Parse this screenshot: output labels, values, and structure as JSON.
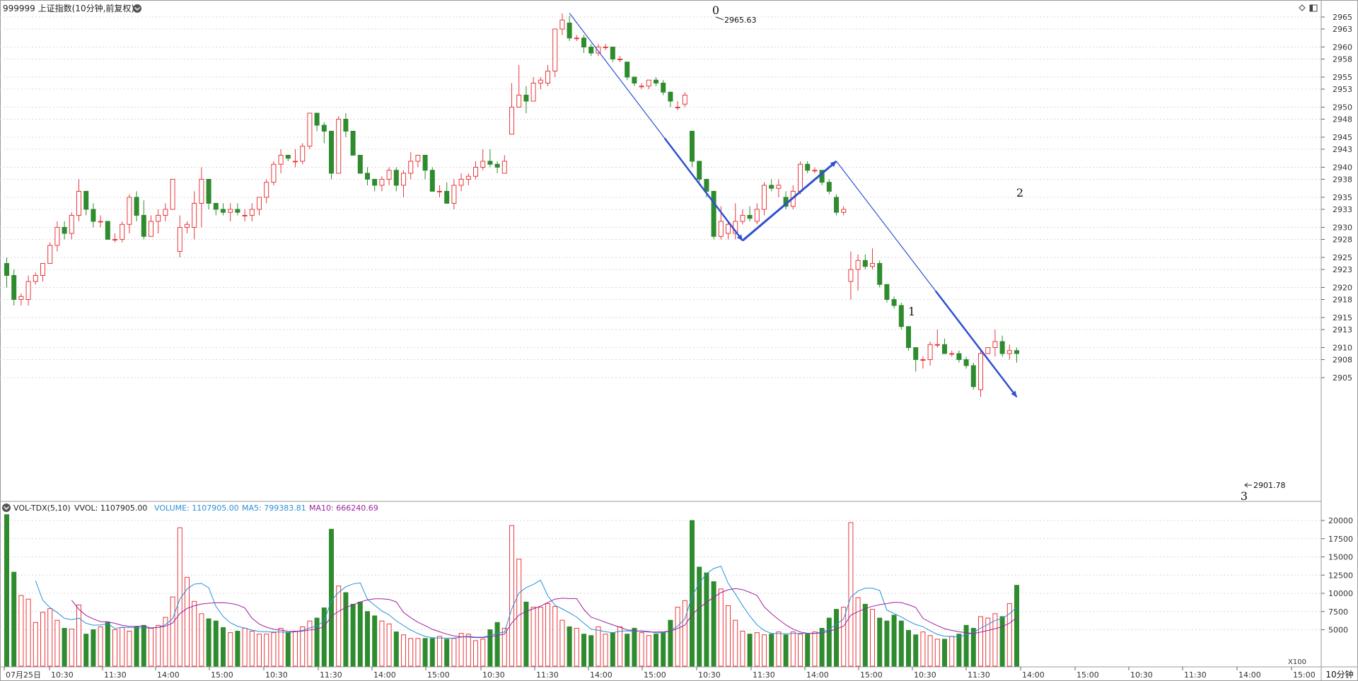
{
  "header": {
    "title": "999999 上证指数(10分钟,前复权)",
    "right_icons": [
      "diamond-icon",
      "layout-icon"
    ]
  },
  "volume_header": {
    "name": "VOL-TDX(5,10)",
    "vvol": "VVOL: 1107905.00",
    "volume": "VOLUME: 1107905.00",
    "ma5": "MA5: 799383.81",
    "ma10": "MA10: 666240.69"
  },
  "axis": {
    "price_ticks": [
      "2965",
      "2963",
      "2960",
      "2958",
      "2955",
      "2953",
      "2950",
      "2948",
      "2945",
      "2943",
      "2940",
      "2938",
      "2935",
      "2933",
      "2930",
      "2928",
      "2925",
      "2923",
      "2920",
      "2918",
      "2915",
      "2913",
      "2910",
      "2908",
      "2905"
    ],
    "volume_ticks": [
      "20000",
      "17500",
      "15000",
      "12500",
      "10000",
      "7500",
      "5000"
    ],
    "volume_unit": "X100",
    "period_label": "10分钟",
    "time_labels": [
      "07月25日",
      "10:30",
      "11:30",
      "14:00",
      "15:00",
      "10:30",
      "11:30",
      "14:00",
      "15:00",
      "10:30",
      "11:30",
      "14:00",
      "15:00",
      "10:30",
      "11:30",
      "14:00",
      "15:00",
      "10:30",
      "11:30",
      "14:00",
      "15:00",
      "10:30",
      "11:30",
      "14:00",
      "15:00"
    ]
  },
  "annotations": {
    "pivot_labels": [
      "0",
      "1",
      "2",
      "3"
    ],
    "high_label": "2965.63",
    "low_label": "2901.78"
  },
  "colors": {
    "up": "#e8383d",
    "down": "#2e8b2e",
    "pivot_line": "#3050d0",
    "ma5": "#2a90d8",
    "ma10": "#a020a0",
    "grid": "#d8d8d8",
    "axis_text": "#333333"
  },
  "chart_data": {
    "type": "candlestick",
    "title": "999999 上证指数(10分钟,前复权)",
    "price_range": [
      2901.78,
      2965.63
    ],
    "volume_range": [
      0,
      20000
    ],
    "volume_unit": "X100",
    "candles": [
      {
        "o": 2924,
        "h": 2925,
        "l": 2920,
        "c": 2922,
        "v": 20800
      },
      {
        "o": 2922,
        "h": 2923,
        "l": 2917,
        "c": 2918,
        "v": 12900
      },
      {
        "o": 2918,
        "h": 2919,
        "l": 2917,
        "c": 2918.5,
        "v": 9700
      },
      {
        "o": 2918,
        "h": 2922,
        "l": 2917,
        "c": 2921,
        "v": 9200
      },
      {
        "o": 2921,
        "h": 2922.5,
        "l": 2920.5,
        "c": 2922,
        "v": 6000
      },
      {
        "o": 2922,
        "h": 2924,
        "l": 2921,
        "c": 2924,
        "v": 7400
      },
      {
        "o": 2924,
        "h": 2927.5,
        "l": 2924,
        "c": 2927,
        "v": 7900
      },
      {
        "o": 2927,
        "h": 2931,
        "l": 2926,
        "c": 2930,
        "v": 6300
      },
      {
        "o": 2930,
        "h": 2931,
        "l": 2928,
        "c": 2929,
        "v": 5200
      },
      {
        "o": 2929,
        "h": 2932.5,
        "l": 2928,
        "c": 2932,
        "v": 5100
      },
      {
        "o": 2932,
        "h": 2938,
        "l": 2931,
        "c": 2936,
        "v": 8400
      },
      {
        "o": 2936,
        "h": 2936,
        "l": 2932,
        "c": 2933,
        "v": 4400
      },
      {
        "o": 2933,
        "h": 2934,
        "l": 2930,
        "c": 2931,
        "v": 5000
      },
      {
        "o": 2931,
        "h": 2932,
        "l": 2930,
        "c": 2931,
        "v": 5400
      },
      {
        "o": 2931,
        "h": 2931,
        "l": 2928,
        "c": 2928,
        "v": 6000
      },
      {
        "o": 2928,
        "h": 2929,
        "l": 2927.5,
        "c": 2928,
        "v": 5000
      },
      {
        "o": 2928,
        "h": 2931,
        "l": 2927.5,
        "c": 2930.5,
        "v": 5300
      },
      {
        "o": 2930.5,
        "h": 2935.5,
        "l": 2929,
        "c": 2935,
        "v": 4800
      },
      {
        "o": 2935,
        "h": 2936,
        "l": 2931,
        "c": 2932,
        "v": 5400
      },
      {
        "o": 2932,
        "h": 2934.5,
        "l": 2928,
        "c": 2928.5,
        "v": 5600
      },
      {
        "o": 2928.5,
        "h": 2932,
        "l": 2928.5,
        "c": 2931,
        "v": 5200
      },
      {
        "o": 2931,
        "h": 2933,
        "l": 2929,
        "c": 2932,
        "v": 5600
      },
      {
        "o": 2932,
        "h": 2934,
        "l": 2931,
        "c": 2933,
        "v": 6700
      },
      {
        "o": 2933,
        "h": 2938,
        "l": 2933,
        "c": 2938,
        "v": 9500
      },
      {
        "o": 2926,
        "h": 2932,
        "l": 2925,
        "c": 2930,
        "v": 19000
      },
      {
        "o": 2930,
        "h": 2931,
        "l": 2929,
        "c": 2930.5,
        "v": 12200
      },
      {
        "o": 2930,
        "h": 2936,
        "l": 2928,
        "c": 2934,
        "v": 8900
      },
      {
        "o": 2934,
        "h": 2940,
        "l": 2930,
        "c": 2938,
        "v": 7200
      },
      {
        "o": 2938,
        "h": 2938,
        "l": 2933,
        "c": 2934,
        "v": 6500
      },
      {
        "o": 2934,
        "h": 2934,
        "l": 2932,
        "c": 2933,
        "v": 6200
      },
      {
        "o": 2933,
        "h": 2934,
        "l": 2932,
        "c": 2932.5,
        "v": 5300
      },
      {
        "o": 2932.5,
        "h": 2934,
        "l": 2931,
        "c": 2933,
        "v": 4600
      },
      {
        "o": 2933,
        "h": 2934,
        "l": 2932,
        "c": 2932.5,
        "v": 4800
      },
      {
        "o": 2932,
        "h": 2933,
        "l": 2931,
        "c": 2932,
        "v": 5200
      },
      {
        "o": 2932,
        "h": 2934,
        "l": 2931,
        "c": 2933,
        "v": 4800
      },
      {
        "o": 2933,
        "h": 2935,
        "l": 2932,
        "c": 2935,
        "v": 4400
      },
      {
        "o": 2935,
        "h": 2938,
        "l": 2934,
        "c": 2937.5,
        "v": 4400
      },
      {
        "o": 2937.5,
        "h": 2941,
        "l": 2937,
        "c": 2940.5,
        "v": 4600
      },
      {
        "o": 2940.5,
        "h": 2943,
        "l": 2939,
        "c": 2942,
        "v": 5200
      },
      {
        "o": 2942,
        "h": 2942,
        "l": 2941,
        "c": 2941.5,
        "v": 4600
      },
      {
        "o": 2941,
        "h": 2943,
        "l": 2940,
        "c": 2941,
        "v": 4800
      },
      {
        "o": 2941,
        "h": 2944,
        "l": 2940.5,
        "c": 2943.5,
        "v": 5400
      },
      {
        "o": 2943.5,
        "h": 2949,
        "l": 2943,
        "c": 2949,
        "v": 6200
      },
      {
        "o": 2949,
        "h": 2949,
        "l": 2946,
        "c": 2947,
        "v": 6600
      },
      {
        "o": 2947,
        "h": 2947.5,
        "l": 2944,
        "c": 2946,
        "v": 8000
      },
      {
        "o": 2946,
        "h": 2946,
        "l": 2938,
        "c": 2939,
        "v": 18800
      },
      {
        "o": 2939,
        "h": 2948.5,
        "l": 2939,
        "c": 2948,
        "v": 11000
      },
      {
        "o": 2948,
        "h": 2949,
        "l": 2945,
        "c": 2946,
        "v": 10100
      },
      {
        "o": 2946,
        "h": 2946,
        "l": 2942,
        "c": 2942,
        "v": 8500
      },
      {
        "o": 2942,
        "h": 2942,
        "l": 2939,
        "c": 2939,
        "v": 8800
      },
      {
        "o": 2939,
        "h": 2940,
        "l": 2937,
        "c": 2938,
        "v": 7500
      },
      {
        "o": 2938,
        "h": 2938,
        "l": 2936,
        "c": 2937,
        "v": 6900
      },
      {
        "o": 2937,
        "h": 2938.5,
        "l": 2936,
        "c": 2938,
        "v": 6200
      },
      {
        "o": 2938,
        "h": 2940,
        "l": 2937,
        "c": 2939.5,
        "v": 5800
      },
      {
        "o": 2939.5,
        "h": 2940,
        "l": 2936,
        "c": 2937,
        "v": 4700
      },
      {
        "o": 2937,
        "h": 2939.5,
        "l": 2935,
        "c": 2939,
        "v": 4300
      },
      {
        "o": 2939,
        "h": 2942.5,
        "l": 2938,
        "c": 2941,
        "v": 3800
      },
      {
        "o": 2941,
        "h": 2942,
        "l": 2940,
        "c": 2942,
        "v": 3800
      },
      {
        "o": 2942,
        "h": 2942,
        "l": 2938,
        "c": 2939.5,
        "v": 3800
      },
      {
        "o": 2939.5,
        "h": 2940,
        "l": 2936,
        "c": 2936,
        "v": 3800
      },
      {
        "o": 2936,
        "h": 2937,
        "l": 2935,
        "c": 2936,
        "v": 4100
      },
      {
        "o": 2936,
        "h": 2937.5,
        "l": 2934,
        "c": 2934,
        "v": 3700
      },
      {
        "o": 2934,
        "h": 2938,
        "l": 2933,
        "c": 2937,
        "v": 3800
      },
      {
        "o": 2937,
        "h": 2939,
        "l": 2936,
        "c": 2938,
        "v": 4500
      },
      {
        "o": 2938,
        "h": 2939,
        "l": 2937,
        "c": 2938.5,
        "v": 4400
      },
      {
        "o": 2938.5,
        "h": 2941,
        "l": 2938,
        "c": 2940,
        "v": 3500
      },
      {
        "o": 2940,
        "h": 2943,
        "l": 2939.5,
        "c": 2941,
        "v": 3700
      },
      {
        "o": 2941,
        "h": 2943,
        "l": 2940,
        "c": 2940.5,
        "v": 5000
      },
      {
        "o": 2940.5,
        "h": 2941,
        "l": 2939,
        "c": 2940,
        "v": 6000
      },
      {
        "o": 2939,
        "h": 2942,
        "l": 2939,
        "c": 2941,
        "v": 5200
      },
      {
        "o": 2945.5,
        "h": 2954,
        "l": 2945.5,
        "c": 2950,
        "v": 19300
      },
      {
        "o": 2950,
        "h": 2957,
        "l": 2950,
        "c": 2952,
        "v": 14700
      },
      {
        "o": 2952,
        "h": 2953.5,
        "l": 2949,
        "c": 2951,
        "v": 8800
      },
      {
        "o": 2951,
        "h": 2955,
        "l": 2951,
        "c": 2954,
        "v": 8100
      },
      {
        "o": 2954,
        "h": 2955,
        "l": 2953,
        "c": 2954.5,
        "v": 8100
      },
      {
        "o": 2954,
        "h": 2957,
        "l": 2953.5,
        "c": 2956,
        "v": 8600
      },
      {
        "o": 2956,
        "h": 2963,
        "l": 2955,
        "c": 2963,
        "v": 8200
      },
      {
        "o": 2963,
        "h": 2965.6,
        "l": 2962,
        "c": 2964.5,
        "v": 6300
      },
      {
        "o": 2964,
        "h": 2965.2,
        "l": 2961,
        "c": 2961.5,
        "v": 5400
      },
      {
        "o": 2961.5,
        "h": 2962,
        "l": 2961,
        "c": 2961.5,
        "v": 5200
      },
      {
        "o": 2961.5,
        "h": 2962,
        "l": 2959,
        "c": 2960,
        "v": 4400
      },
      {
        "o": 2960,
        "h": 2960.5,
        "l": 2958.5,
        "c": 2959,
        "v": 4200
      },
      {
        "o": 2959,
        "h": 2960.5,
        "l": 2958.5,
        "c": 2960,
        "v": 5400
      },
      {
        "o": 2960,
        "h": 2960.5,
        "l": 2959.5,
        "c": 2960,
        "v": 4400
      },
      {
        "o": 2960,
        "h": 2960,
        "l": 2957.5,
        "c": 2958,
        "v": 4600
      },
      {
        "o": 2958,
        "h": 2958.5,
        "l": 2957.5,
        "c": 2958,
        "v": 5400
      },
      {
        "o": 2957.5,
        "h": 2957.5,
        "l": 2954.5,
        "c": 2955,
        "v": 4400
      },
      {
        "o": 2955,
        "h": 2955,
        "l": 2953.5,
        "c": 2954,
        "v": 5200
      },
      {
        "o": 2953.5,
        "h": 2954,
        "l": 2953,
        "c": 2953.5,
        "v": 4600
      },
      {
        "o": 2953.5,
        "h": 2954.5,
        "l": 2953,
        "c": 2954.5,
        "v": 4200
      },
      {
        "o": 2954.5,
        "h": 2955,
        "l": 2953.5,
        "c": 2954,
        "v": 4400
      },
      {
        "o": 2954,
        "h": 2954.5,
        "l": 2952,
        "c": 2952.5,
        "v": 4600
      },
      {
        "o": 2952.5,
        "h": 2952.5,
        "l": 2950,
        "c": 2951,
        "v": 6300
      },
      {
        "o": 2950,
        "h": 2951,
        "l": 2949.5,
        "c": 2950,
        "v": 8100
      },
      {
        "o": 2950.5,
        "h": 2952.5,
        "l": 2950,
        "c": 2952,
        "v": 9000
      },
      {
        "o": 2946,
        "h": 2946,
        "l": 2940,
        "c": 2941,
        "v": 20000
      },
      {
        "o": 2941,
        "h": 2941,
        "l": 2937,
        "c": 2938,
        "v": 13600
      },
      {
        "o": 2938,
        "h": 2938,
        "l": 2935,
        "c": 2936,
        "v": 12800
      },
      {
        "o": 2936,
        "h": 2936,
        "l": 2928,
        "c": 2928.5,
        "v": 11600
      },
      {
        "o": 2928.5,
        "h": 2933.5,
        "l": 2928,
        "c": 2931,
        "v": 10600
      },
      {
        "o": 2929,
        "h": 2931,
        "l": 2928,
        "c": 2930.5,
        "v": 8300
      },
      {
        "o": 2929,
        "h": 2934,
        "l": 2928,
        "c": 2931,
        "v": 6300
      },
      {
        "o": 2931,
        "h": 2933,
        "l": 2930.5,
        "c": 2932,
        "v": 4800
      },
      {
        "o": 2932,
        "h": 2933.5,
        "l": 2931,
        "c": 2931.5,
        "v": 4400
      },
      {
        "o": 2931,
        "h": 2934,
        "l": 2930.5,
        "c": 2933,
        "v": 4600
      },
      {
        "o": 2933,
        "h": 2937.5,
        "l": 2932,
        "c": 2937,
        "v": 4300
      },
      {
        "o": 2937,
        "h": 2938,
        "l": 2936,
        "c": 2936.5,
        "v": 4400
      },
      {
        "o": 2936.5,
        "h": 2938,
        "l": 2935,
        "c": 2937,
        "v": 4700
      },
      {
        "o": 2935,
        "h": 2936,
        "l": 2933,
        "c": 2933.5,
        "v": 4300
      },
      {
        "o": 2933.5,
        "h": 2937,
        "l": 2933,
        "c": 2936,
        "v": 4700
      },
      {
        "o": 2936,
        "h": 2941,
        "l": 2935.5,
        "c": 2940.5,
        "v": 4400
      },
      {
        "o": 2940.5,
        "h": 2941,
        "l": 2939,
        "c": 2939.5,
        "v": 4400
      },
      {
        "o": 2939.5,
        "h": 2940,
        "l": 2939,
        "c": 2939.5,
        "v": 4700
      },
      {
        "o": 2939.5,
        "h": 2939.5,
        "l": 2937,
        "c": 2937.5,
        "v": 5200
      },
      {
        "o": 2937.5,
        "h": 2938,
        "l": 2935.5,
        "c": 2936,
        "v": 6600
      },
      {
        "o": 2935,
        "h": 2935.5,
        "l": 2932,
        "c": 2932.5,
        "v": 7800
      },
      {
        "o": 2932.5,
        "h": 2933.5,
        "l": 2932,
        "c": 2933,
        "v": 8100
      },
      {
        "o": 2921,
        "h": 2926,
        "l": 2918,
        "c": 2923,
        "v": 19700
      },
      {
        "o": 2923,
        "h": 2925.5,
        "l": 2919.5,
        "c": 2924.5,
        "v": 9400
      },
      {
        "o": 2924.5,
        "h": 2925.5,
        "l": 2923,
        "c": 2923.5,
        "v": 8500
      },
      {
        "o": 2923.5,
        "h": 2926.5,
        "l": 2923,
        "c": 2924,
        "v": 7800
      },
      {
        "o": 2924,
        "h": 2924.5,
        "l": 2920,
        "c": 2920.5,
        "v": 6600
      },
      {
        "o": 2920.5,
        "h": 2920.5,
        "l": 2917.5,
        "c": 2918,
        "v": 6200
      },
      {
        "o": 2918,
        "h": 2918.5,
        "l": 2916.5,
        "c": 2917,
        "v": 7000
      },
      {
        "o": 2917,
        "h": 2917.5,
        "l": 2913,
        "c": 2913.5,
        "v": 6200
      },
      {
        "o": 2913.5,
        "h": 2913.5,
        "l": 2909.5,
        "c": 2910,
        "v": 4900
      },
      {
        "o": 2910,
        "h": 2910,
        "l": 2906,
        "c": 2908,
        "v": 4300
      },
      {
        "o": 2908,
        "h": 2908.5,
        "l": 2906.5,
        "c": 2908,
        "v": 4700
      },
      {
        "o": 2908,
        "h": 2911,
        "l": 2907,
        "c": 2910.5,
        "v": 4200
      },
      {
        "o": 2910.5,
        "h": 2913,
        "l": 2910,
        "c": 2910.5,
        "v": 3700
      },
      {
        "o": 2910.5,
        "h": 2911.5,
        "l": 2909,
        "c": 2909,
        "v": 3700
      },
      {
        "o": 2909,
        "h": 2909.5,
        "l": 2908.5,
        "c": 2909,
        "v": 4100
      },
      {
        "o": 2909,
        "h": 2909.5,
        "l": 2907.5,
        "c": 2908,
        "v": 4400
      },
      {
        "o": 2908,
        "h": 2908.5,
        "l": 2906.5,
        "c": 2907,
        "v": 5600
      },
      {
        "o": 2907,
        "h": 2907.5,
        "l": 2903,
        "c": 2903.5,
        "v": 5200
      },
      {
        "o": 2903,
        "h": 2909.5,
        "l": 2901.8,
        "c": 2909,
        "v": 6800
      },
      {
        "o": 2909,
        "h": 2910,
        "l": 2909,
        "c": 2910,
        "v": 6600
      },
      {
        "o": 2910,
        "h": 2913,
        "l": 2908.5,
        "c": 2911,
        "v": 7200
      },
      {
        "o": 2911,
        "h": 2912,
        "l": 2908.5,
        "c": 2909,
        "v": 6800
      },
      {
        "o": 2909,
        "h": 2910.5,
        "l": 2908,
        "c": 2909.5,
        "v": 8600
      },
      {
        "o": 2909.5,
        "h": 2910,
        "l": 2907.5,
        "c": 2909,
        "v": 11100
      }
    ],
    "gaps_after": [
      23,
      45,
      69,
      95,
      119
    ],
    "pivots": [
      {
        "label": "0",
        "index": 78,
        "price": 2965.63
      },
      {
        "label": "1",
        "index": 102,
        "price": 2927.8
      },
      {
        "label": "2",
        "index": 115,
        "price": 2941
      },
      {
        "label": "3",
        "index": 140,
        "price": 2901.78
      }
    ],
    "ma5_label": "MA5",
    "ma10_label": "MA10"
  }
}
